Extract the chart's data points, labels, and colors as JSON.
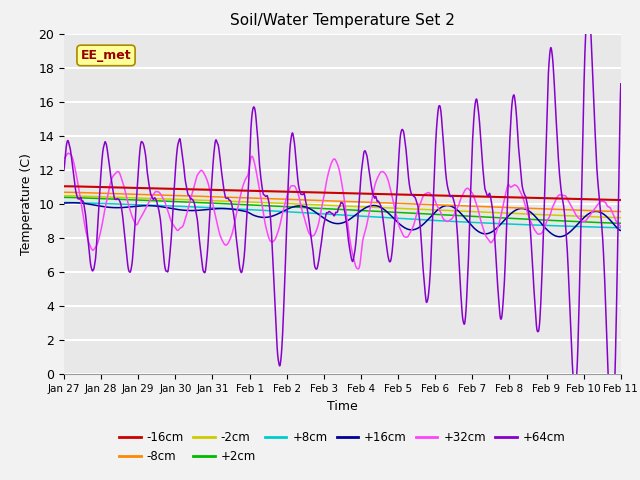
{
  "title": "Soil/Water Temperature Set 2",
  "xlabel": "Time",
  "ylabel": "Temperature (C)",
  "ylim": [
    0,
    20
  ],
  "background_color": "#e8e8e8",
  "grid_color": "#ffffff",
  "fig_bg": "#f2f2f2",
  "series_colors": {
    "-16cm": "#cc0000",
    "-8cm": "#ff8800",
    "-2cm": "#cccc00",
    "+2cm": "#00bb00",
    "+8cm": "#00cccc",
    "+16cm": "#000099",
    "+32cm": "#ff44ff",
    "+64cm": "#8800cc"
  },
  "annotation_text": "EE_met",
  "annotation_bg": "#ffff99",
  "annotation_border": "#aa8800",
  "annotation_text_color": "#990000",
  "tick_labels": [
    "Jan 27",
    "Jan 28",
    "Jan 29",
    "Jan 30",
    "Jan 31",
    "Feb 1",
    "Feb 2",
    "Feb 3",
    "Feb 4",
    "Feb 5",
    "Feb 6",
    "Feb 7",
    "Feb 8",
    "Feb 9",
    "Feb 10",
    "Feb 11"
  ],
  "legend_order": [
    "-16cm",
    "-8cm",
    "-2cm",
    "+2cm",
    "+8cm",
    "+16cm",
    "+32cm",
    "+64cm"
  ]
}
